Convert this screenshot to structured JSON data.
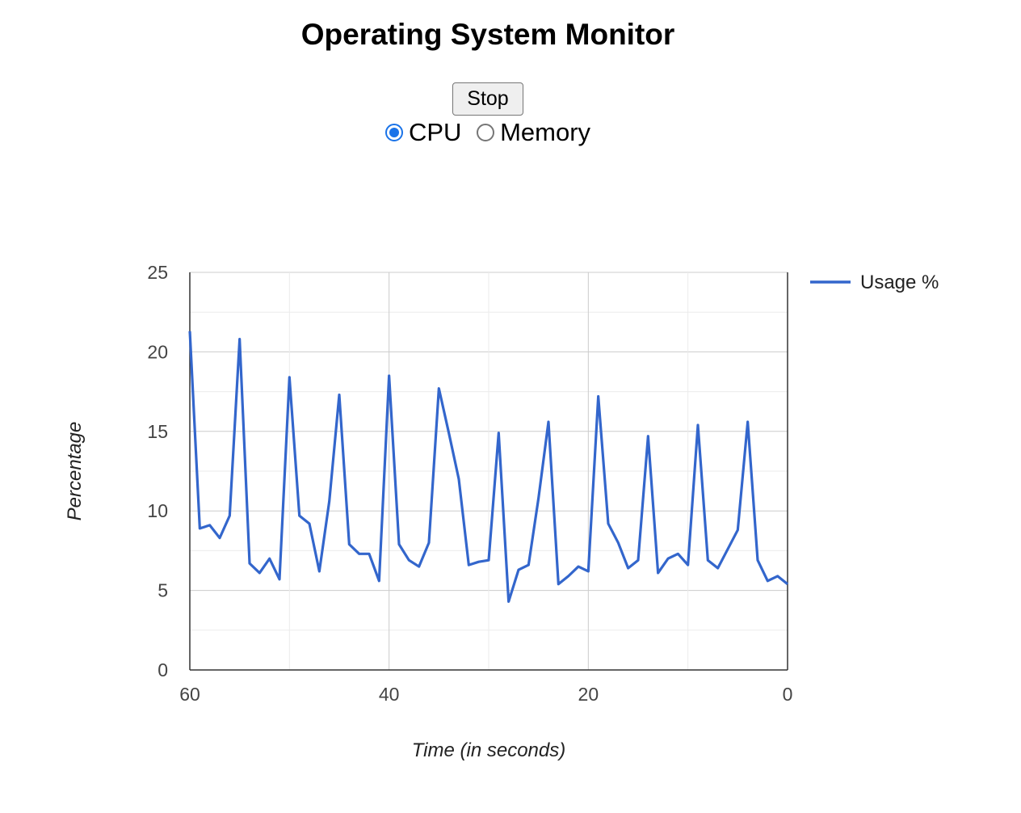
{
  "page": {
    "title": "Operating System Monitor",
    "stop_label": "Stop",
    "radio_cpu_label": "CPU",
    "radio_memory_label": "Memory",
    "selected": "CPU"
  },
  "colors": {
    "series": "#3366cc",
    "grid": "#cccccc",
    "axis": "#333333",
    "accent": "#1a73e8"
  },
  "chart_data": {
    "type": "line",
    "xlabel": "Time (in seconds)",
    "ylabel": "Percentage",
    "xlim": [
      60,
      0
    ],
    "ylim": [
      0,
      25
    ],
    "xticks": [
      60,
      40,
      20,
      0
    ],
    "yticks": [
      0,
      5,
      10,
      15,
      20,
      25
    ],
    "grid": true,
    "legend_position": "right",
    "series": [
      {
        "name": "Usage %",
        "x": [
          60,
          59,
          58,
          57,
          56,
          55,
          54,
          53,
          52,
          51,
          50,
          49,
          48,
          47,
          46,
          45,
          44,
          43,
          42,
          41,
          40,
          39,
          38,
          37,
          36,
          35,
          34,
          33,
          32,
          31,
          30,
          29,
          28,
          27,
          26,
          25,
          24,
          23,
          22,
          21,
          20,
          19,
          18,
          17,
          16,
          15,
          14,
          13,
          12,
          11,
          10,
          9,
          8,
          7,
          6,
          5,
          4,
          3,
          2,
          1,
          0
        ],
        "values": [
          21.3,
          8.9,
          9.1,
          8.3,
          9.7,
          20.8,
          6.7,
          6.1,
          7.0,
          5.7,
          18.4,
          9.7,
          9.2,
          6.2,
          10.6,
          17.3,
          7.9,
          7.3,
          7.3,
          5.6,
          18.5,
          7.9,
          6.9,
          6.5,
          8.0,
          17.7,
          14.9,
          12.0,
          6.6,
          6.8,
          6.9,
          14.9,
          4.3,
          6.3,
          6.6,
          10.8,
          15.6,
          5.4,
          5.9,
          6.5,
          6.2,
          17.2,
          9.2,
          8.0,
          6.4,
          6.9,
          14.7,
          6.1,
          7.0,
          7.3,
          6.6,
          15.4,
          6.9,
          6.4,
          7.6,
          8.8,
          15.6,
          6.9,
          5.6,
          5.9,
          5.4
        ]
      }
    ]
  }
}
